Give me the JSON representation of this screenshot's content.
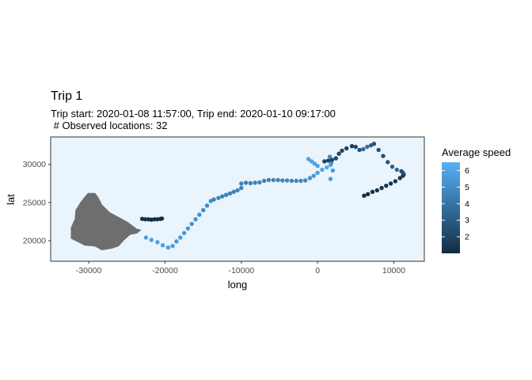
{
  "chart_data": {
    "type": "scatter",
    "title": "Trip 1",
    "subtitle_line1": "Trip start: 2020-01-08 11:57:00, Trip end: 2020-01-10 09:17:00",
    "subtitle_line2": " # Observed locations: 32",
    "xlabel": "long",
    "ylabel": "lat",
    "xlim": [
      -35000,
      14000
    ],
    "ylim": [
      17300,
      33600
    ],
    "x_ticks": [
      -30000,
      -20000,
      -10000,
      0,
      10000
    ],
    "x_tick_labels": [
      "-30000",
      "-20000",
      "-10000",
      "0",
      "10000"
    ],
    "y_ticks": [
      20000,
      25000,
      30000
    ],
    "y_tick_labels": [
      "20000",
      "25000",
      "30000"
    ],
    "grid": false,
    "panel_background": "#eaf4fc",
    "land_color": "#6e6e6e",
    "legend": {
      "title": "Average speed",
      "placement": "right",
      "range": [
        1,
        6.5
      ],
      "breaks": [
        2,
        3,
        4,
        5,
        6
      ],
      "break_labels": [
        "2",
        "3",
        "4",
        "5",
        "6"
      ],
      "color_low": "#132b43",
      "color_high": "#56b1f7"
    },
    "land": [
      [
        -30100,
        26200
      ],
      [
        -29200,
        26200
      ],
      [
        -28800,
        25700
      ],
      [
        -28300,
        24700
      ],
      [
        -27300,
        23700
      ],
      [
        -25800,
        22900
      ],
      [
        -24900,
        22400
      ],
      [
        -23700,
        21500
      ],
      [
        -23200,
        21400
      ],
      [
        -23700,
        21000
      ],
      [
        -24600,
        20800
      ],
      [
        -25400,
        20100
      ],
      [
        -26100,
        19300
      ],
      [
        -27000,
        19000
      ],
      [
        -28300,
        18800
      ],
      [
        -29200,
        19300
      ],
      [
        -30500,
        19400
      ],
      [
        -31300,
        19800
      ],
      [
        -32300,
        20300
      ],
      [
        -32300,
        21700
      ],
      [
        -31800,
        22800
      ],
      [
        -31700,
        24000
      ],
      [
        -31000,
        25100
      ]
    ],
    "tracks": [
      {
        "x": [
          -23000,
          -22600,
          -22200,
          -21800,
          -21400,
          -21000,
          -20600,
          -20400
        ],
        "y": [
          22850,
          22800,
          22800,
          22750,
          22800,
          22800,
          22850,
          22900
        ],
        "speed": [
          1.2,
          1.2,
          1.2,
          1.1,
          1.2,
          1.2,
          1.1,
          1.2
        ]
      },
      {
        "x": [
          -22500,
          -21800,
          -21000,
          -20300,
          -19600,
          -19000,
          -18500,
          -18000,
          -17500,
          -17000,
          -16500,
          -16000,
          -15500,
          -15000,
          -14500,
          -14000,
          -13600,
          -13000,
          -12500,
          -12000,
          -11500,
          -11000,
          -10500,
          -10000
        ],
        "y": [
          20400,
          20100,
          19800,
          19400,
          19100,
          19300,
          19900,
          20400,
          21000,
          21600,
          22200,
          22800,
          23400,
          24000,
          24600,
          25200,
          25400,
          25600,
          25800,
          26000,
          26200,
          26400,
          26600,
          26900
        ],
        "speed": [
          5.8,
          5.8,
          5.8,
          5.9,
          5.8,
          5.6,
          5.5,
          5.5,
          5.4,
          5.4,
          5.3,
          5.3,
          5.2,
          5.0,
          5.0,
          4.8,
          4.7,
          4.7,
          4.6,
          4.6,
          4.6,
          4.7,
          4.6,
          4.6
        ]
      },
      {
        "x": [
          -10000,
          -9400,
          -8800,
          -8200,
          -7600,
          -7000,
          -6400,
          -5800,
          -5200,
          -4600,
          -4000,
          -3400,
          -2800,
          -2200,
          -1600,
          -1000,
          -500,
          0,
          600,
          1200,
          1700
        ],
        "y": [
          27500,
          27600,
          27550,
          27600,
          27650,
          27850,
          27950,
          27950,
          27950,
          27900,
          27900,
          27850,
          27850,
          27850,
          27900,
          28200,
          28500,
          28900,
          29300,
          29600,
          29900
        ],
        "speed": [
          4.6,
          4.5,
          4.6,
          4.6,
          4.6,
          4.5,
          4.6,
          4.6,
          4.5,
          4.6,
          4.6,
          4.6,
          4.6,
          4.6,
          4.7,
          5.2,
          5.5,
          5.8,
          6.0,
          6.1,
          6.2
        ]
      },
      {
        "x": [
          -1200,
          -800,
          -400,
          0
        ],
        "y": [
          30700,
          30400,
          30100,
          29800
        ],
        "speed": [
          5.8,
          5.9,
          5.8,
          5.9
        ]
      },
      {
        "x": [
          1700,
          2000,
          1800,
          1600
        ],
        "y": [
          28100,
          29200,
          30200,
          31000
        ],
        "speed": [
          5.6,
          5.5,
          5.3,
          4.8
        ]
      },
      {
        "x": [
          900,
          1400,
          1900,
          2400,
          2800,
          3200,
          3800,
          4500,
          5000,
          5500,
          6000,
          6500,
          7000,
          7400,
          8000,
          8600,
          9200,
          9800,
          10400,
          11000,
          11200,
          11300
        ],
        "y": [
          30400,
          30500,
          30600,
          30800,
          31400,
          31800,
          32100,
          32400,
          32300,
          31900,
          32000,
          32300,
          32500,
          32700,
          31900,
          31100,
          30300,
          29700,
          29300,
          29100,
          28900,
          28700
        ],
        "speed": [
          2.1,
          2.0,
          1.9,
          2.1,
          2.2,
          2.0,
          1.8,
          1.6,
          2.2,
          2.5,
          3.5,
          3.8,
          3.2,
          2.5,
          2.6,
          2.4,
          2.8,
          3.1,
          3.4,
          2.4,
          2.6,
          2.8
        ]
      },
      {
        "x": [
          11200,
          10800,
          10200,
          9600,
          9000,
          8400,
          7800,
          7200,
          6600,
          6100
        ],
        "y": [
          28500,
          28200,
          27800,
          27500,
          27200,
          26900,
          26600,
          26400,
          26100,
          25900
        ],
        "speed": [
          1.6,
          1.5,
          1.5,
          1.4,
          1.4,
          1.3,
          1.3,
          1.2,
          1.2,
          1.1
        ]
      }
    ]
  }
}
